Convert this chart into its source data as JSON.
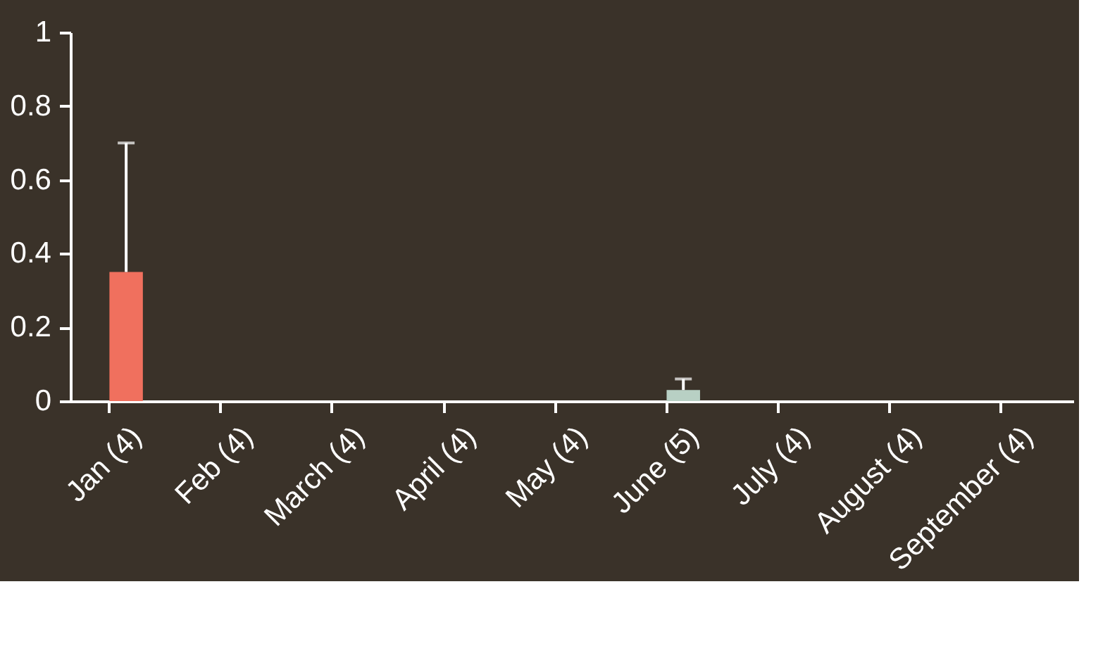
{
  "chart_data": {
    "type": "bar",
    "categories": [
      "Jan (4)",
      "Feb (4)",
      "March (4)",
      "April (4)",
      "May (4)",
      "June (5)",
      "July (4)",
      "August (4)",
      "September (4)"
    ],
    "values": [
      0.35,
      0,
      0,
      0,
      0,
      0.03,
      0,
      0,
      0
    ],
    "errors": [
      [
        0.35,
        0.7
      ],
      null,
      null,
      null,
      null,
      [
        0.03,
        0.06
      ],
      null,
      null,
      null
    ],
    "colors": [
      "#f0705e",
      "#b8d0c4",
      "#b8d0c4",
      "#b8d0c4",
      "#b8d0c4",
      "#b8d0c4",
      "#b8d0c4",
      "#b8d0c4",
      "#b8d0c4"
    ],
    "ylim": [
      0,
      1
    ],
    "yticks": [
      0,
      0.2,
      0.4,
      0.6,
      0.8,
      1
    ],
    "grid": false
  }
}
